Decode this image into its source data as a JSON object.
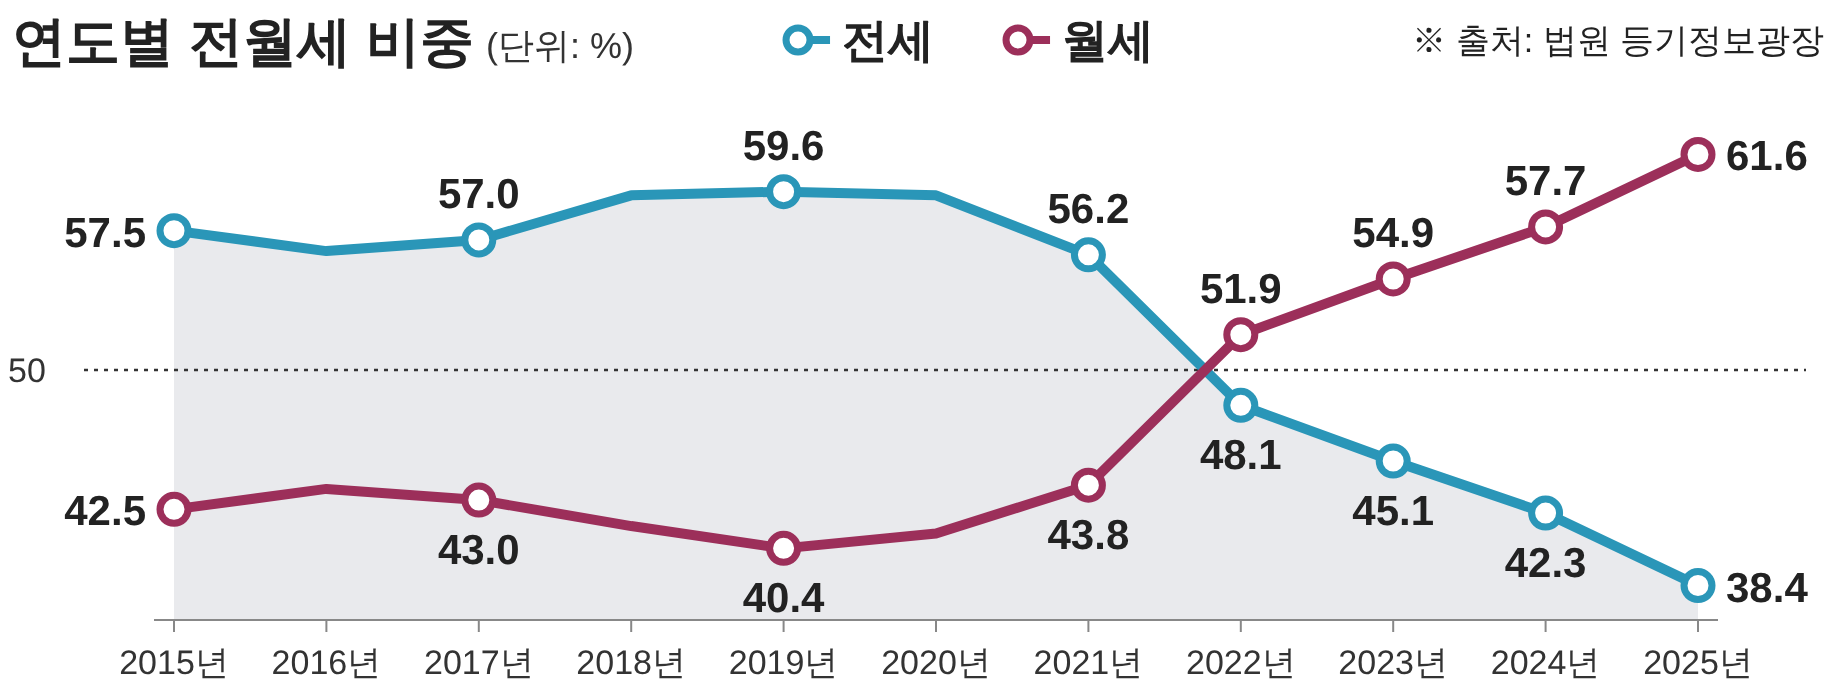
{
  "chart_data": {
    "type": "line",
    "title": "연도별 전월세 비중",
    "subtitle": "(단위: %)",
    "annotations": [
      "※ 출처: 법원 등기정보광장"
    ],
    "categories": [
      "2015년",
      "2016년",
      "2017년",
      "2018년",
      "2019년",
      "2020년",
      "2021년",
      "2022년",
      "2023년",
      "2024년",
      "2025년"
    ],
    "series": [
      {
        "name": "전세",
        "type": "area",
        "color": "#2a96b8",
        "values": [
          57.5,
          56.4,
          57.0,
          59.4,
          59.6,
          59.4,
          56.2,
          48.1,
          45.1,
          42.3,
          38.4
        ],
        "value_labels": [
          "57.5",
          null,
          "57.0",
          null,
          "59.6",
          null,
          "56.2",
          "48.1",
          "45.1",
          "42.3",
          "38.4"
        ]
      },
      {
        "name": "월세",
        "type": "line",
        "color": "#9c2f5a",
        "values": [
          42.5,
          43.6,
          43.0,
          41.6,
          40.4,
          41.2,
          43.8,
          51.9,
          54.9,
          57.7,
          61.6
        ],
        "value_labels": [
          "42.5",
          null,
          "43.0",
          null,
          "40.4",
          null,
          "43.8",
          "51.9",
          "54.9",
          "57.7",
          "61.6"
        ]
      }
    ],
    "ref_lines": [
      {
        "axis": "y",
        "value": 50,
        "label": "50",
        "color": "#333333",
        "line_style": "dotted"
      }
    ],
    "marker": "circle",
    "legend": "top",
    "grid": false,
    "tick_labels": "x"
  }
}
